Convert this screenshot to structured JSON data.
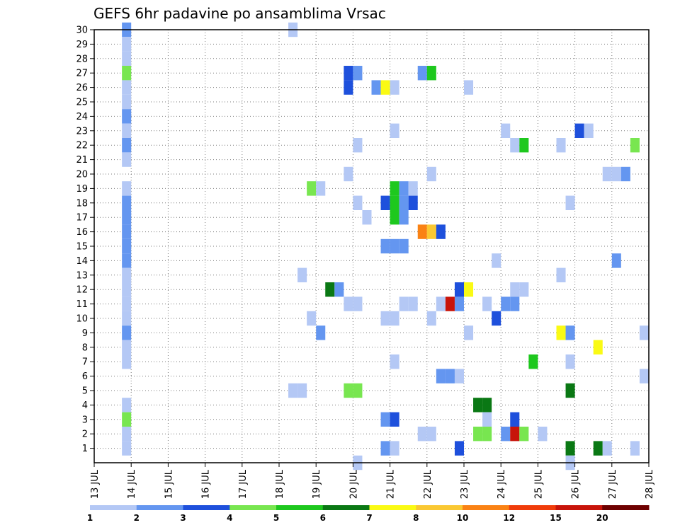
{
  "chart_data": {
    "type": "heatmap",
    "title": "GEFS 6hr padavine po ansamblima Vrsac",
    "xlabel": "",
    "ylabel": "",
    "x_ticks": [
      "13 JUL",
      "14 JUL",
      "15 JUL",
      "16 JUL",
      "17 JUL",
      "18 JUL",
      "19 JUL",
      "20 JUL",
      "21 JUL",
      "22 JUL",
      "23 JUL",
      "24 JUL",
      "25 JUL",
      "26 JUL",
      "27 JUL",
      "28 JUL"
    ],
    "x_tick_days": [
      13,
      14,
      15,
      16,
      17,
      18,
      19,
      20,
      21,
      22,
      23,
      24,
      25,
      26,
      27,
      28
    ],
    "xlim": [
      13,
      28
    ],
    "y_ticks": [
      1,
      2,
      3,
      4,
      5,
      6,
      7,
      8,
      9,
      10,
      11,
      12,
      13,
      14,
      15,
      16,
      17,
      18,
      19,
      20,
      21,
      22,
      23,
      24,
      25,
      26,
      27,
      28,
      29,
      30
    ],
    "ylim": [
      0,
      30
    ],
    "grid": true,
    "time_step_days": 0.25,
    "colorbar": {
      "labels": [
        "1",
        "2",
        "3",
        "4",
        "5",
        "6",
        "7",
        "8",
        "10",
        "12",
        "15",
        "20"
      ],
      "colors": [
        "#b4c8f5",
        "#6496f0",
        "#1e50dc",
        "#78e650",
        "#1ec81e",
        "#0a7814",
        "#fafa14",
        "#fac832",
        "#fa8214",
        "#f03c0a",
        "#c8140a",
        "#6e0000"
      ]
    },
    "cells": [
      {
        "t": 13.75,
        "m": 30,
        "c": 2
      },
      {
        "t": 13.75,
        "m": 29,
        "c": 1
      },
      {
        "t": 13.75,
        "m": 28,
        "c": 1
      },
      {
        "t": 13.75,
        "m": 27,
        "c": 4
      },
      {
        "t": 13.75,
        "m": 26,
        "c": 1
      },
      {
        "t": 13.75,
        "m": 25,
        "c": 1
      },
      {
        "t": 13.75,
        "m": 24,
        "c": 2
      },
      {
        "t": 13.75,
        "m": 23,
        "c": 1
      },
      {
        "t": 13.75,
        "m": 22,
        "c": 2
      },
      {
        "t": 13.75,
        "m": 21,
        "c": 1
      },
      {
        "t": 13.75,
        "m": 19,
        "c": 1
      },
      {
        "t": 13.75,
        "m": 18,
        "c": 2
      },
      {
        "t": 13.75,
        "m": 17,
        "c": 2
      },
      {
        "t": 13.75,
        "m": 16,
        "c": 2
      },
      {
        "t": 13.75,
        "m": 15,
        "c": 2
      },
      {
        "t": 13.75,
        "m": 14,
        "c": 2
      },
      {
        "t": 13.75,
        "m": 13,
        "c": 1
      },
      {
        "t": 13.75,
        "m": 12,
        "c": 1
      },
      {
        "t": 13.75,
        "m": 11,
        "c": 1
      },
      {
        "t": 13.75,
        "m": 10,
        "c": 1
      },
      {
        "t": 13.75,
        "m": 9,
        "c": 2
      },
      {
        "t": 13.75,
        "m": 8,
        "c": 1
      },
      {
        "t": 13.75,
        "m": 7,
        "c": 1
      },
      {
        "t": 13.75,
        "m": 4,
        "c": 1
      },
      {
        "t": 13.75,
        "m": 3,
        "c": 4
      },
      {
        "t": 13.75,
        "m": 2,
        "c": 1
      },
      {
        "t": 13.75,
        "m": 1,
        "c": 1
      },
      {
        "t": 18.25,
        "m": 30,
        "c": 1
      },
      {
        "t": 18.25,
        "m": 5,
        "c": 1
      },
      {
        "t": 18.5,
        "m": 5,
        "c": 1
      },
      {
        "t": 18.5,
        "m": 13,
        "c": 1
      },
      {
        "t": 18.75,
        "m": 19,
        "c": 4
      },
      {
        "t": 18.75,
        "m": 10,
        "c": 1
      },
      {
        "t": 19.0,
        "m": 19,
        "c": 1
      },
      {
        "t": 19.0,
        "m": 9,
        "c": 2
      },
      {
        "t": 19.25,
        "m": 12,
        "c": 6
      },
      {
        "t": 19.5,
        "m": 12,
        "c": 2
      },
      {
        "t": 19.75,
        "m": 27,
        "c": 3
      },
      {
        "t": 20.0,
        "m": 27,
        "c": 2
      },
      {
        "t": 19.75,
        "m": 26,
        "c": 3
      },
      {
        "t": 19.75,
        "m": 20,
        "c": 1
      },
      {
        "t": 19.75,
        "m": 11,
        "c": 1
      },
      {
        "t": 20.0,
        "m": 11,
        "c": 1
      },
      {
        "t": 19.75,
        "m": 5,
        "c": 4
      },
      {
        "t": 20.0,
        "m": 5,
        "c": 4
      },
      {
        "t": 20.0,
        "m": 22,
        "c": 1
      },
      {
        "t": 20.0,
        "m": 18,
        "c": 1
      },
      {
        "t": 20.25,
        "m": 17,
        "c": 1
      },
      {
        "t": 20.0,
        "m": 0,
        "c": 1
      },
      {
        "t": 20.5,
        "m": 26,
        "c": 2
      },
      {
        "t": 20.75,
        "m": 26,
        "c": 7
      },
      {
        "t": 21.0,
        "m": 26,
        "c": 1
      },
      {
        "t": 21.0,
        "m": 23,
        "c": 1
      },
      {
        "t": 21.0,
        "m": 19,
        "c": 5
      },
      {
        "t": 21.25,
        "m": 19,
        "c": 2
      },
      {
        "t": 21.5,
        "m": 19,
        "c": 1
      },
      {
        "t": 20.75,
        "m": 18,
        "c": 3
      },
      {
        "t": 21.0,
        "m": 18,
        "c": 5
      },
      {
        "t": 21.25,
        "m": 18,
        "c": 2
      },
      {
        "t": 21.5,
        "m": 18,
        "c": 3
      },
      {
        "t": 21.0,
        "m": 17,
        "c": 5
      },
      {
        "t": 21.25,
        "m": 17,
        "c": 2
      },
      {
        "t": 20.75,
        "m": 15,
        "c": 2
      },
      {
        "t": 21.0,
        "m": 15,
        "c": 2
      },
      {
        "t": 21.25,
        "m": 15,
        "c": 2
      },
      {
        "t": 21.25,
        "m": 11,
        "c": 1
      },
      {
        "t": 21.5,
        "m": 11,
        "c": 1
      },
      {
        "t": 20.75,
        "m": 10,
        "c": 1
      },
      {
        "t": 21.0,
        "m": 10,
        "c": 1
      },
      {
        "t": 21.0,
        "m": 7,
        "c": 1
      },
      {
        "t": 20.75,
        "m": 3,
        "c": 2
      },
      {
        "t": 21.0,
        "m": 3,
        "c": 3
      },
      {
        "t": 20.75,
        "m": 1,
        "c": 2
      },
      {
        "t": 21.0,
        "m": 1,
        "c": 1
      },
      {
        "t": 21.75,
        "m": 27,
        "c": 2
      },
      {
        "t": 22.0,
        "m": 27,
        "c": 5
      },
      {
        "t": 22.0,
        "m": 20,
        "c": 1
      },
      {
        "t": 21.75,
        "m": 16,
        "c": 9
      },
      {
        "t": 22.0,
        "m": 16,
        "c": 8
      },
      {
        "t": 22.25,
        "m": 16,
        "c": 3
      },
      {
        "t": 22.0,
        "m": 10,
        "c": 1
      },
      {
        "t": 22.25,
        "m": 11,
        "c": 1
      },
      {
        "t": 22.5,
        "m": 11,
        "c": 11
      },
      {
        "t": 22.75,
        "m": 11,
        "c": 2
      },
      {
        "t": 22.75,
        "m": 12,
        "c": 3
      },
      {
        "t": 23.0,
        "m": 12,
        "c": 7
      },
      {
        "t": 22.25,
        "m": 6,
        "c": 2
      },
      {
        "t": 22.5,
        "m": 6,
        "c": 2
      },
      {
        "t": 22.75,
        "m": 6,
        "c": 1
      },
      {
        "t": 21.75,
        "m": 2,
        "c": 1
      },
      {
        "t": 22.0,
        "m": 2,
        "c": 1
      },
      {
        "t": 22.75,
        "m": 1,
        "c": 3
      },
      {
        "t": 23.0,
        "m": 26,
        "c": 1
      },
      {
        "t": 23.0,
        "m": 9,
        "c": 1
      },
      {
        "t": 23.5,
        "m": 11,
        "c": 1
      },
      {
        "t": 23.25,
        "m": 4,
        "c": 6
      },
      {
        "t": 23.5,
        "m": 4,
        "c": 6
      },
      {
        "t": 23.5,
        "m": 3,
        "c": 1
      },
      {
        "t": 23.25,
        "m": 2,
        "c": 4
      },
      {
        "t": 23.5,
        "m": 2,
        "c": 4
      },
      {
        "t": 23.75,
        "m": 14,
        "c": 1
      },
      {
        "t": 23.75,
        "m": 10,
        "c": 3
      },
      {
        "t": 24.0,
        "m": 23,
        "c": 1
      },
      {
        "t": 24.25,
        "m": 22,
        "c": 1
      },
      {
        "t": 24.5,
        "m": 22,
        "c": 5
      },
      {
        "t": 24.25,
        "m": 12,
        "c": 1
      },
      {
        "t": 24.5,
        "m": 12,
        "c": 1
      },
      {
        "t": 24.0,
        "m": 11,
        "c": 2
      },
      {
        "t": 24.25,
        "m": 11,
        "c": 2
      },
      {
        "t": 24.25,
        "m": 3,
        "c": 3
      },
      {
        "t": 24.0,
        "m": 2,
        "c": 2
      },
      {
        "t": 24.25,
        "m": 2,
        "c": 11
      },
      {
        "t": 24.5,
        "m": 2,
        "c": 4
      },
      {
        "t": 24.75,
        "m": 7,
        "c": 5
      },
      {
        "t": 25.0,
        "m": 2,
        "c": 1
      },
      {
        "t": 25.5,
        "m": 22,
        "c": 1
      },
      {
        "t": 25.5,
        "m": 13,
        "c": 1
      },
      {
        "t": 25.5,
        "m": 9,
        "c": 7
      },
      {
        "t": 25.75,
        "m": 9,
        "c": 2
      },
      {
        "t": 25.75,
        "m": 18,
        "c": 1
      },
      {
        "t": 25.75,
        "m": 7,
        "c": 1
      },
      {
        "t": 25.75,
        "m": 5,
        "c": 6
      },
      {
        "t": 25.75,
        "m": 1,
        "c": 6
      },
      {
        "t": 25.75,
        "m": 0,
        "c": 1
      },
      {
        "t": 26.0,
        "m": 23,
        "c": 3
      },
      {
        "t": 26.25,
        "m": 23,
        "c": 1
      },
      {
        "t": 26.5,
        "m": 8,
        "c": 7
      },
      {
        "t": 26.5,
        "m": 1,
        "c": 6
      },
      {
        "t": 26.75,
        "m": 1,
        "c": 1
      },
      {
        "t": 26.75,
        "m": 20,
        "c": 1
      },
      {
        "t": 27.0,
        "m": 20,
        "c": 1
      },
      {
        "t": 27.25,
        "m": 20,
        "c": 2
      },
      {
        "t": 27.0,
        "m": 14,
        "c": 2
      },
      {
        "t": 27.5,
        "m": 22,
        "c": 4
      },
      {
        "t": 27.5,
        "m": 1,
        "c": 1
      },
      {
        "t": 27.75,
        "m": 9,
        "c": 1
      },
      {
        "t": 27.75,
        "m": 6,
        "c": 1
      }
    ]
  }
}
